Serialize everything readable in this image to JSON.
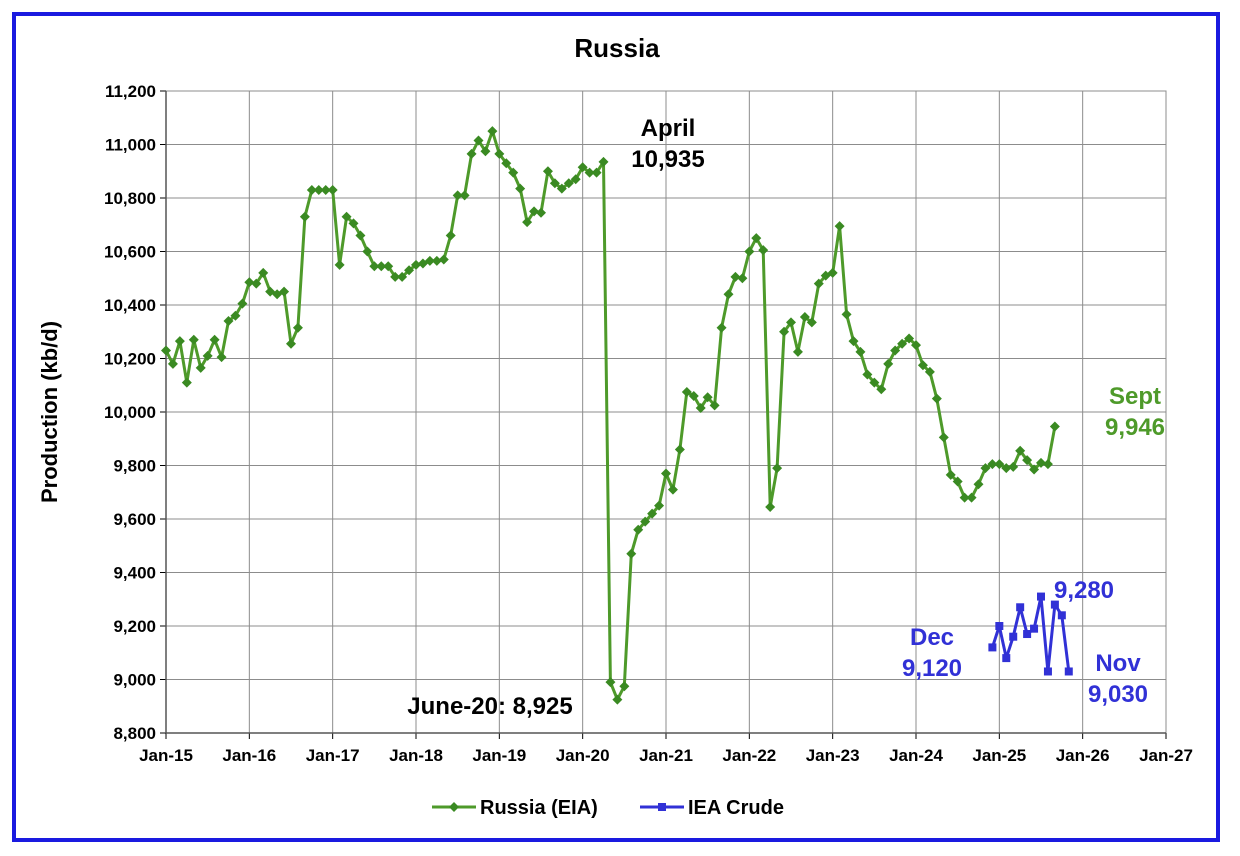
{
  "chart_data": {
    "type": "line",
    "title": "Russia",
    "xlabel": "",
    "ylabel": "Production (kb/d)",
    "ylim": [
      8800,
      11200
    ],
    "yticks": [
      "8,800",
      "9,000",
      "9,200",
      "9,400",
      "9,600",
      "9,800",
      "10,000",
      "10,200",
      "10,400",
      "10,600",
      "10,800",
      "11,000",
      "11,200"
    ],
    "xticks": [
      "Jan-15",
      "Jan-16",
      "Jan-17",
      "Jan-18",
      "Jan-19",
      "Jan-20",
      "Jan-21",
      "Jan-22",
      "Jan-23",
      "Jan-24",
      "Jan-25",
      "Jan-26",
      "Jan-27"
    ],
    "xlim": [
      "2015-01",
      "2027-01"
    ],
    "grid": true,
    "legend_position": "bottom",
    "colors": {
      "russia": "#3a8a22",
      "russia_line": "#4e9a2a",
      "iea": "#3131d6",
      "frame": "#1a1ae0"
    },
    "series": [
      {
        "name": "Russia (EIA)",
        "start": "2015-01",
        "values": [
          10230,
          10180,
          10265,
          10110,
          10270,
          10165,
          10210,
          10270,
          10205,
          10340,
          10360,
          10405,
          10485,
          10480,
          10520,
          10450,
          10440,
          10450,
          10255,
          10315,
          10730,
          10830,
          10830,
          10830,
          10830,
          10550,
          10730,
          10705,
          10660,
          10600,
          10545,
          10545,
          10545,
          10505,
          10505,
          10530,
          10550,
          10555,
          10565,
          10565,
          10570,
          10660,
          10810,
          10810,
          10965,
          11015,
          10975,
          11050,
          10965,
          10930,
          10895,
          10835,
          10710,
          10750,
          10745,
          10900,
          10855,
          10835,
          10855,
          10870,
          10915,
          10895,
          10895,
          10935,
          8990,
          8925,
          8975,
          9470,
          9560,
          9590,
          9620,
          9650,
          9770,
          9710,
          9860,
          10075,
          10060,
          10015,
          10055,
          10025,
          10315,
          10440,
          10505,
          10500,
          10600,
          10650,
          10605,
          9645,
          9790,
          10300,
          10335,
          10225,
          10355,
          10335,
          10480,
          10510,
          10520,
          10695,
          10365,
          10265,
          10225,
          10140,
          10110,
          10085,
          10180,
          10230,
          10255,
          10275,
          10250,
          10175,
          10150,
          10050,
          9905,
          9765,
          9740,
          9680,
          9680,
          9730,
          9790,
          9805,
          9805,
          9790,
          9795,
          9855,
          9820,
          9785,
          9810,
          9805,
          9946
        ]
      },
      {
        "name": "IEA Crude",
        "start": "2024-12",
        "values": [
          9120,
          9200,
          9080,
          9160,
          9270,
          9170,
          9190,
          9310,
          9030,
          9280,
          9240,
          9030
        ]
      }
    ],
    "annotations": [
      {
        "id": "april",
        "lines": [
          "April",
          "10,935"
        ],
        "color": "#000000"
      },
      {
        "id": "june",
        "lines": [
          "June-20: 8,925"
        ],
        "color": "#000000"
      },
      {
        "id": "sept",
        "lines": [
          "Sept",
          "9,946"
        ],
        "color": "#4e9a2a"
      },
      {
        "id": "dec",
        "lines": [
          "Dec",
          "9,120"
        ],
        "color": "#3131d6"
      },
      {
        "id": "iea_peak",
        "lines": [
          "9,280"
        ],
        "color": "#3131d6"
      },
      {
        "id": "nov",
        "lines": [
          "Nov",
          "9,030"
        ],
        "color": "#3131d6"
      }
    ]
  }
}
